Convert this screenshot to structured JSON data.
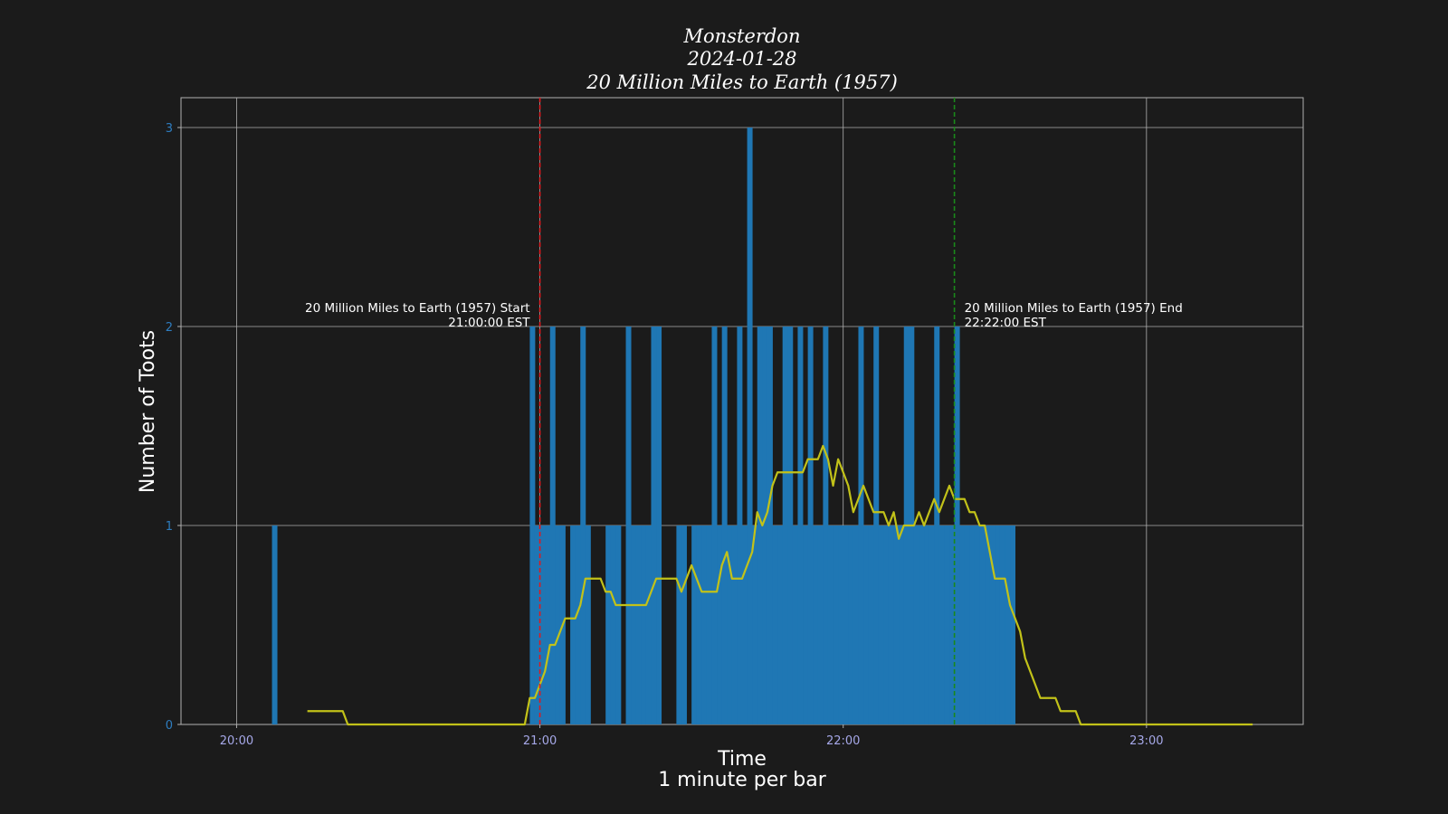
{
  "chart_data": {
    "type": "bar",
    "title_lines": [
      "Monsterdon",
      "2024-01-28",
      "20 Million Miles to Earth (1957)"
    ],
    "xlabel_lines": [
      "Time",
      "1 minute per bar"
    ],
    "ylabel": "Number of Toots",
    "x_unit": "minute of day (HH:MM)",
    "xlim": [
      "19:49",
      "23:31"
    ],
    "ylim": [
      0,
      3.15
    ],
    "yticks": [
      0,
      1,
      2,
      3
    ],
    "xticks": [
      "20:00",
      "21:00",
      "22:00",
      "23:00"
    ],
    "grid": true,
    "series": [
      {
        "type": "bar",
        "values": [
          [
            "20:07",
            1
          ],
          [
            "20:58",
            2
          ],
          [
            "20:59",
            1
          ],
          [
            "21:00",
            1
          ],
          [
            "21:01",
            1
          ],
          [
            "21:02",
            2
          ],
          [
            "21:03",
            1
          ],
          [
            "21:04",
            1
          ],
          [
            "21:06",
            1
          ],
          [
            "21:07",
            1
          ],
          [
            "21:08",
            2
          ],
          [
            "21:09",
            1
          ],
          [
            "21:13",
            1
          ],
          [
            "21:14",
            1
          ],
          [
            "21:15",
            1
          ],
          [
            "21:17",
            2
          ],
          [
            "21:18",
            1
          ],
          [
            "21:19",
            1
          ],
          [
            "21:20",
            1
          ],
          [
            "21:21",
            1
          ],
          [
            "21:22",
            2
          ],
          [
            "21:23",
            2
          ],
          [
            "21:27",
            1
          ],
          [
            "21:28",
            1
          ],
          [
            "21:30",
            1
          ],
          [
            "21:31",
            1
          ],
          [
            "21:32",
            1
          ],
          [
            "21:33",
            1
          ],
          [
            "21:34",
            2
          ],
          [
            "21:35",
            1
          ],
          [
            "21:36",
            2
          ],
          [
            "21:37",
            1
          ],
          [
            "21:38",
            1
          ],
          [
            "21:39",
            2
          ],
          [
            "21:40",
            1
          ],
          [
            "21:41",
            3
          ],
          [
            "21:42",
            1
          ],
          [
            "21:43",
            2
          ],
          [
            "21:44",
            2
          ],
          [
            "21:45",
            2
          ],
          [
            "21:46",
            1
          ],
          [
            "21:47",
            1
          ],
          [
            "21:48",
            2
          ],
          [
            "21:49",
            2
          ],
          [
            "21:50",
            1
          ],
          [
            "21:51",
            2
          ],
          [
            "21:52",
            1
          ],
          [
            "21:53",
            2
          ],
          [
            "21:54",
            1
          ],
          [
            "21:55",
            1
          ],
          [
            "21:56",
            2
          ],
          [
            "21:57",
            1
          ],
          [
            "21:58",
            1
          ],
          [
            "21:59",
            1
          ],
          [
            "22:00",
            1
          ],
          [
            "22:01",
            1
          ],
          [
            "22:02",
            1
          ],
          [
            "22:03",
            2
          ],
          [
            "22:04",
            1
          ],
          [
            "22:05",
            1
          ],
          [
            "22:06",
            2
          ],
          [
            "22:07",
            1
          ],
          [
            "22:08",
            1
          ],
          [
            "22:09",
            1
          ],
          [
            "22:10",
            1
          ],
          [
            "22:11",
            1
          ],
          [
            "22:12",
            2
          ],
          [
            "22:13",
            2
          ],
          [
            "22:14",
            1
          ],
          [
            "22:15",
            1
          ],
          [
            "22:16",
            1
          ],
          [
            "22:17",
            1
          ],
          [
            "22:18",
            2
          ],
          [
            "22:19",
            1
          ],
          [
            "22:20",
            1
          ],
          [
            "22:21",
            1
          ],
          [
            "22:22",
            2
          ],
          [
            "22:23",
            1
          ],
          [
            "22:24",
            1
          ],
          [
            "22:25",
            1
          ],
          [
            "22:26",
            1
          ],
          [
            "22:27",
            1
          ],
          [
            "22:28",
            1
          ],
          [
            "22:29",
            1
          ],
          [
            "22:30",
            1
          ],
          [
            "22:31",
            1
          ],
          [
            "22:32",
            1
          ],
          [
            "22:33",
            1
          ]
        ]
      },
      {
        "type": "line",
        "color": "#c2c219",
        "points": [
          [
            "20:14",
            0.067
          ],
          [
            "20:21",
            0.067
          ],
          [
            "20:22",
            0
          ],
          [
            "20:57",
            0
          ],
          [
            "20:58",
            0.133
          ],
          [
            "20:59",
            0.133
          ],
          [
            "21:00",
            0.2
          ],
          [
            "21:01",
            0.267
          ],
          [
            "21:02",
            0.4
          ],
          [
            "21:03",
            0.4
          ],
          [
            "21:05",
            0.533
          ],
          [
            "21:07",
            0.533
          ],
          [
            "21:08",
            0.6
          ],
          [
            "21:09",
            0.733
          ],
          [
            "21:12",
            0.733
          ],
          [
            "21:13",
            0.667
          ],
          [
            "21:14",
            0.667
          ],
          [
            "21:15",
            0.6
          ],
          [
            "21:21",
            0.6
          ],
          [
            "21:23",
            0.733
          ],
          [
            "21:27",
            0.733
          ],
          [
            "21:28",
            0.667
          ],
          [
            "21:30",
            0.8
          ],
          [
            "21:32",
            0.667
          ],
          [
            "21:35",
            0.667
          ],
          [
            "21:36",
            0.8
          ],
          [
            "21:37",
            0.867
          ],
          [
            "21:38",
            0.733
          ],
          [
            "21:40",
            0.733
          ],
          [
            "21:42",
            0.867
          ],
          [
            "21:43",
            1.067
          ],
          [
            "21:44",
            1
          ],
          [
            "21:45",
            1.067
          ],
          [
            "21:46",
            1.2
          ],
          [
            "21:47",
            1.267
          ],
          [
            "21:52",
            1.267
          ],
          [
            "21:53",
            1.333
          ],
          [
            "21:55",
            1.333
          ],
          [
            "21:56",
            1.4
          ],
          [
            "21:57",
            1.333
          ],
          [
            "21:58",
            1.2
          ],
          [
            "21:59",
            1.333
          ],
          [
            "22:00",
            1.267
          ],
          [
            "22:01",
            1.2
          ],
          [
            "22:02",
            1.067
          ],
          [
            "22:04",
            1.2
          ],
          [
            "22:06",
            1.067
          ],
          [
            "22:08",
            1.067
          ],
          [
            "22:09",
            1
          ],
          [
            "22:10",
            1.067
          ],
          [
            "22:11",
            0.933
          ],
          [
            "22:12",
            1
          ],
          [
            "22:14",
            1
          ],
          [
            "22:15",
            1.067
          ],
          [
            "22:16",
            1
          ],
          [
            "22:18",
            1.133
          ],
          [
            "22:19",
            1.067
          ],
          [
            "22:21",
            1.2
          ],
          [
            "22:22",
            1.133
          ],
          [
            "22:24",
            1.133
          ],
          [
            "22:25",
            1.067
          ],
          [
            "22:26",
            1.067
          ],
          [
            "22:27",
            1
          ],
          [
            "22:28",
            1
          ],
          [
            "22:30",
            0.733
          ],
          [
            "22:32",
            0.733
          ],
          [
            "22:33",
            0.6
          ],
          [
            "22:35",
            0.467
          ],
          [
            "22:36",
            0.333
          ],
          [
            "22:38",
            0.2
          ],
          [
            "22:39",
            0.133
          ],
          [
            "22:42",
            0.133
          ],
          [
            "22:43",
            0.067
          ],
          [
            "22:46",
            0.067
          ],
          [
            "22:47",
            0
          ],
          [
            "23:21",
            0
          ]
        ]
      }
    ],
    "markers": [
      {
        "time": "21:00",
        "color": "#e0191e",
        "lines": [
          "20 Million Miles to Earth (1957) Start",
          "21:00:00 EST"
        ],
        "align": "left"
      },
      {
        "time": "22:22",
        "color": "#1a8a1a",
        "lines": [
          "20 Million Miles to Earth (1957) End",
          "22:22:00 EST"
        ],
        "align": "right"
      }
    ],
    "colors": {
      "bar": "#1f77b4",
      "grid": "#b0b0b0",
      "ytick": "#2e7dc0",
      "xtick": "#a6a8e8"
    }
  }
}
